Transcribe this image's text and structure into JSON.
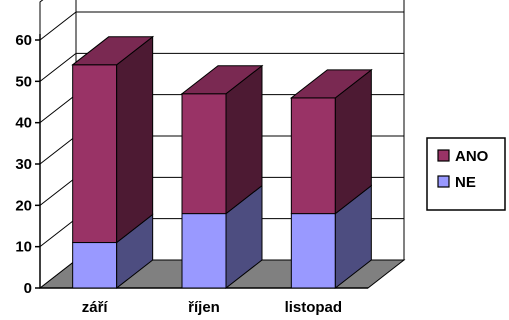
{
  "chart_data": {
    "type": "bar",
    "stacked": true,
    "style": "3d",
    "categories": [
      "září",
      "říjen",
      "listopad"
    ],
    "series": [
      {
        "name": "NE",
        "values": [
          11,
          18,
          18
        ],
        "color": "#9999FF"
      },
      {
        "name": "ANO",
        "values": [
          43,
          29,
          28
        ],
        "color": "#993366"
      }
    ],
    "ylim": [
      0,
      60
    ],
    "yticks": [
      0,
      10,
      20,
      30,
      40,
      50,
      60
    ],
    "grid": true,
    "legend": "right",
    "legend_order": [
      "ANO",
      "NE"
    ]
  }
}
